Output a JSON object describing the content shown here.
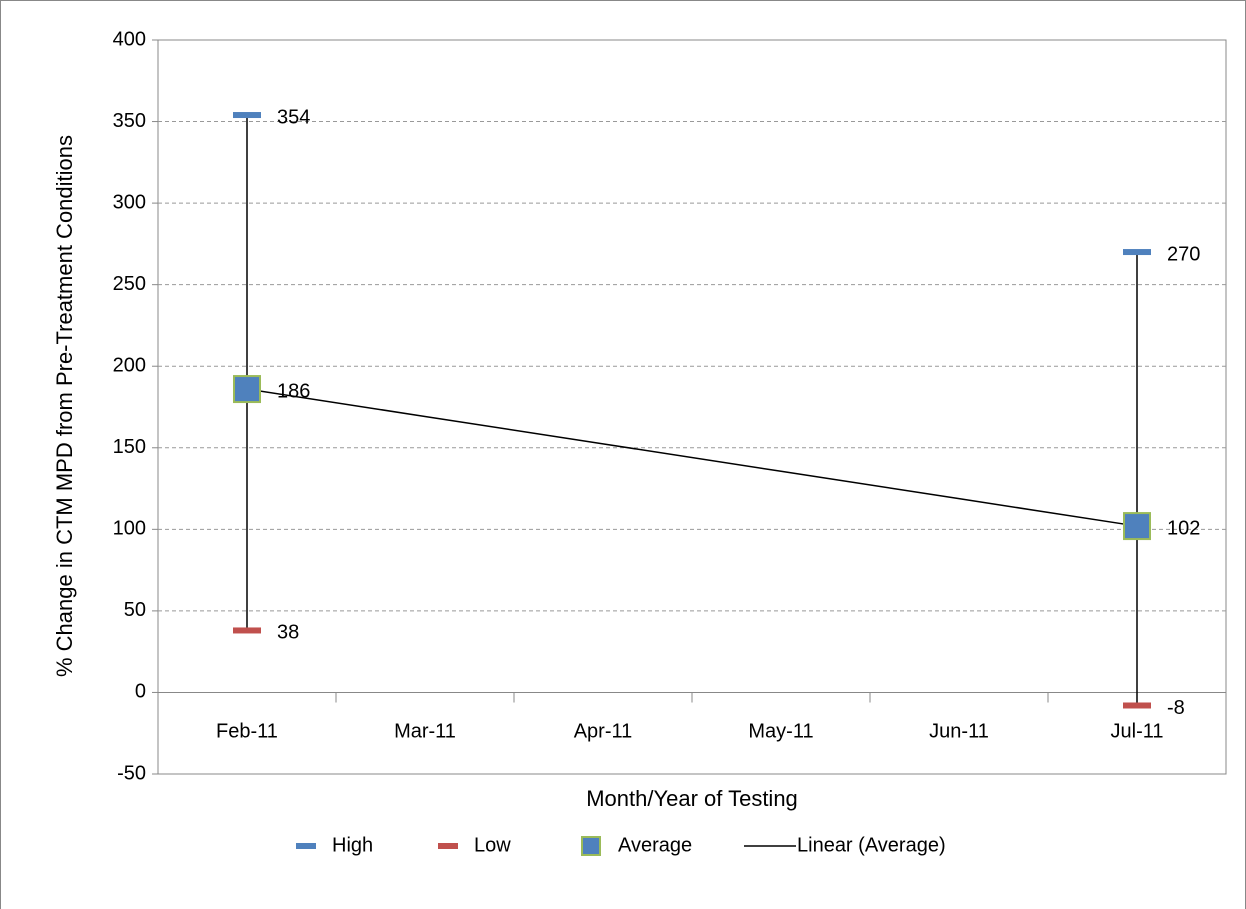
{
  "chart_data": {
    "type": "line",
    "x_label": "Month/Year of Testing",
    "y_label": "% Change in CTM MPD from Pre-Treatment Conditions",
    "categories": [
      "Feb-11",
      "Mar-11",
      "Apr-11",
      "May-11",
      "Jun-11",
      "Jul-11"
    ],
    "series": [
      {
        "name": "High",
        "color": "#4f81bd",
        "marker": "dash",
        "labels": true,
        "values": [
          354,
          null,
          null,
          null,
          null,
          270
        ]
      },
      {
        "name": "Low",
        "color": "#c0504d",
        "marker": "dash",
        "labels": true,
        "values": [
          38,
          null,
          null,
          null,
          null,
          -8
        ]
      },
      {
        "name": "Average",
        "color": "#4f81bd",
        "edge": "#9bbb59",
        "marker": "square",
        "labels": true,
        "values": [
          186,
          null,
          null,
          null,
          null,
          102
        ]
      },
      {
        "name": "Linear (Average)",
        "color": "#000000",
        "marker": "line",
        "values": [
          186,
          169.2,
          152.4,
          135.6,
          118.8,
          102
        ]
      }
    ],
    "high_low_lines": true,
    "ylim": [
      -50,
      400
    ],
    "yticks": [
      -50,
      0,
      50,
      100,
      150,
      200,
      250,
      300,
      350,
      400
    ],
    "grid": true,
    "legend": "bottom"
  }
}
